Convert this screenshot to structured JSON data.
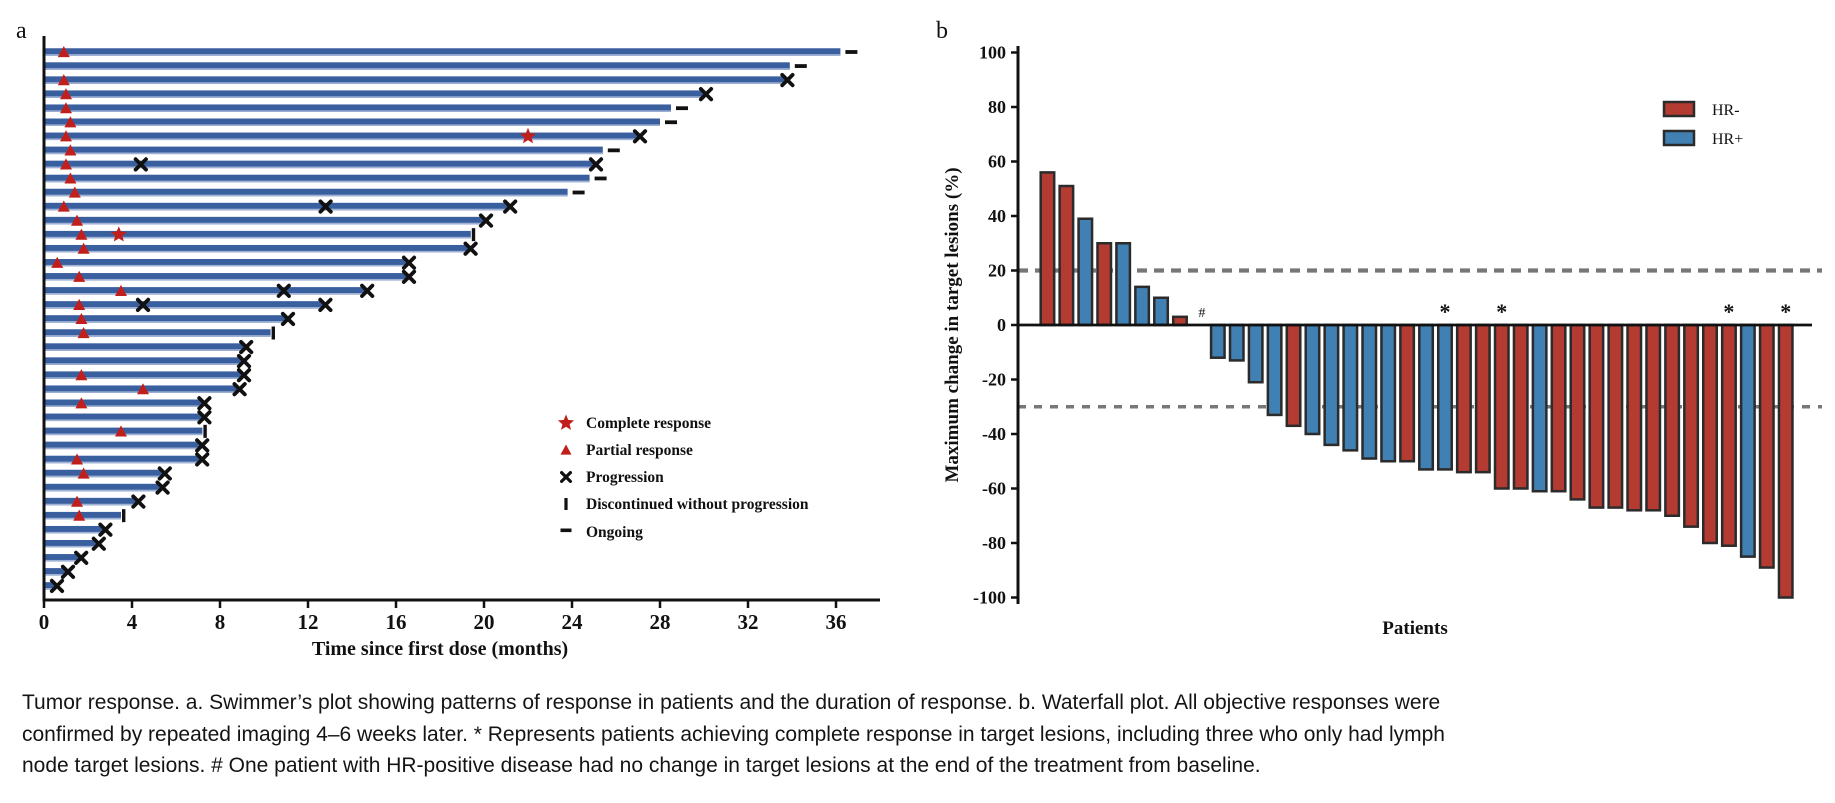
{
  "style": {
    "swimmer_bar": "#3A5F9F",
    "swimmer_bar_edge": "#9FB2D6",
    "marker_red": "#C01F1C",
    "hr_neg": "#B43B32",
    "hr_pos": "#4180B2",
    "bar_stroke": "#2B2B2B",
    "dashed_line": "#777777",
    "axis": "#111111"
  },
  "chart_data": [
    {
      "type": "swimmer",
      "panel_label": "a",
      "xlabel": "Time since first dose (months)",
      "x_ticks": [
        0,
        4,
        8,
        12,
        16,
        20,
        24,
        28,
        32,
        36
      ],
      "xlim": [
        0,
        38
      ],
      "legend": [
        {
          "marker": "star",
          "label": "Complete response"
        },
        {
          "marker": "triangle",
          "label": "Partial response"
        },
        {
          "marker": "x",
          "label": "Progression"
        },
        {
          "marker": "bar",
          "label": "Discontinued without progression"
        },
        {
          "marker": "dash",
          "label": "Ongoing"
        }
      ],
      "patients": [
        {
          "months": 36.2,
          "end": "ongoing",
          "pr": 0.9
        },
        {
          "months": 33.9,
          "end": "ongoing"
        },
        {
          "months": 33.7,
          "end": "progression",
          "pr": 0.9
        },
        {
          "months": 30.0,
          "end": "progression",
          "pr": 1.0
        },
        {
          "months": 28.5,
          "end": "ongoing",
          "pr": 1.0
        },
        {
          "months": 28.0,
          "end": "ongoing",
          "pr": 1.2
        },
        {
          "months": 27.0,
          "end": "progression",
          "pr": 1.0,
          "cr": 22.0
        },
        {
          "months": 25.4,
          "end": "ongoing",
          "pr": 1.2
        },
        {
          "months": 25.0,
          "end": "progression",
          "pr": 1.0,
          "x": [
            4.4
          ]
        },
        {
          "months": 24.8,
          "end": "ongoing",
          "pr": 1.2
        },
        {
          "months": 23.8,
          "end": "ongoing",
          "pr": 1.4
        },
        {
          "months": 21.1,
          "end": "progression",
          "pr": 0.9,
          "x": [
            12.8
          ]
        },
        {
          "months": 20.0,
          "end": "progression",
          "pr": 1.5
        },
        {
          "months": 19.4,
          "end": "discontinued",
          "pr": 1.7,
          "cr": 3.4
        },
        {
          "months": 19.3,
          "end": "progression",
          "pr": 1.8
        },
        {
          "months": 16.5,
          "end": "progression",
          "pr": 0.6
        },
        {
          "months": 16.5,
          "end": "progression",
          "pr": 1.6
        },
        {
          "months": 14.6,
          "end": "progression",
          "pr": 3.5,
          "x": [
            10.9
          ]
        },
        {
          "months": 12.7,
          "end": "progression",
          "pr": 1.6,
          "x": [
            4.5
          ]
        },
        {
          "months": 11.0,
          "end": "progression",
          "pr": 1.7
        },
        {
          "months": 10.3,
          "end": "discontinued",
          "pr": 1.8
        },
        {
          "months": 9.1,
          "end": "progression"
        },
        {
          "months": 9.0,
          "end": "progression"
        },
        {
          "months": 9.0,
          "end": "progression",
          "pr": 1.7
        },
        {
          "months": 8.8,
          "end": "progression",
          "pr": 4.5
        },
        {
          "months": 7.2,
          "end": "progression",
          "pr": 1.7
        },
        {
          "months": 7.2,
          "end": "progression"
        },
        {
          "months": 7.2,
          "end": "discontinued",
          "pr": 3.5
        },
        {
          "months": 7.1,
          "end": "progression"
        },
        {
          "months": 7.1,
          "end": "progression",
          "pr": 1.5
        },
        {
          "months": 5.4,
          "end": "progression",
          "pr": 1.8
        },
        {
          "months": 5.3,
          "end": "progression"
        },
        {
          "months": 4.2,
          "end": "progression",
          "pr": 1.5
        },
        {
          "months": 3.5,
          "end": "discontinued",
          "pr": 1.6
        },
        {
          "months": 2.7,
          "end": "progression"
        },
        {
          "months": 2.4,
          "end": "progression"
        },
        {
          "months": 1.6,
          "end": "progression"
        },
        {
          "months": 1.0,
          "end": "progression"
        },
        {
          "months": 0.5,
          "end": "progression"
        }
      ]
    },
    {
      "type": "waterfall",
      "panel_label": "b",
      "ylabel": "Maximum change in target lesions (%)",
      "xlabel": "Patients",
      "y_ticks": [
        100,
        80,
        60,
        40,
        20,
        0,
        -20,
        -40,
        -60,
        -80,
        -100
      ],
      "ylim": [
        -100,
        100
      ],
      "ref_lines": [
        20,
        -30
      ],
      "hash_symbol": "#",
      "star_symbol": "*",
      "legend": [
        {
          "label": "HR-",
          "group": "HR-"
        },
        {
          "label": "HR+",
          "group": "HR+"
        }
      ],
      "patients": [
        {
          "change": 56,
          "group": "HR-"
        },
        {
          "change": 51,
          "group": "HR-"
        },
        {
          "change": 39,
          "group": "HR+"
        },
        {
          "change": 30,
          "group": "HR-"
        },
        {
          "change": 30,
          "group": "HR+"
        },
        {
          "change": 14,
          "group": "HR+"
        },
        {
          "change": 10,
          "group": "HR+"
        },
        {
          "change": 3,
          "group": "HR-"
        },
        {
          "change": 0,
          "group": "HR+",
          "note": "hash"
        },
        {
          "change": -12,
          "group": "HR+"
        },
        {
          "change": -13,
          "group": "HR+"
        },
        {
          "change": -21,
          "group": "HR+"
        },
        {
          "change": -33,
          "group": "HR+"
        },
        {
          "change": -37,
          "group": "HR-"
        },
        {
          "change": -40,
          "group": "HR+"
        },
        {
          "change": -44,
          "group": "HR+"
        },
        {
          "change": -46,
          "group": "HR+"
        },
        {
          "change": -49,
          "group": "HR+"
        },
        {
          "change": -50,
          "group": "HR+"
        },
        {
          "change": -50,
          "group": "HR-"
        },
        {
          "change": -53,
          "group": "HR+"
        },
        {
          "change": -53,
          "group": "HR+",
          "note": "star"
        },
        {
          "change": -54,
          "group": "HR-"
        },
        {
          "change": -54,
          "group": "HR-"
        },
        {
          "change": -60,
          "group": "HR-",
          "note": "star"
        },
        {
          "change": -60,
          "group": "HR-"
        },
        {
          "change": -61,
          "group": "HR+"
        },
        {
          "change": -61,
          "group": "HR-"
        },
        {
          "change": -64,
          "group": "HR-"
        },
        {
          "change": -67,
          "group": "HR-"
        },
        {
          "change": -67,
          "group": "HR-"
        },
        {
          "change": -68,
          "group": "HR-"
        },
        {
          "change": -68,
          "group": "HR-"
        },
        {
          "change": -70,
          "group": "HR-"
        },
        {
          "change": -74,
          "group": "HR-"
        },
        {
          "change": -80,
          "group": "HR-"
        },
        {
          "change": -81,
          "group": "HR-",
          "note": "star"
        },
        {
          "change": -85,
          "group": "HR+"
        },
        {
          "change": -89,
          "group": "HR-"
        },
        {
          "change": -100,
          "group": "HR-",
          "note": "star"
        }
      ]
    }
  ],
  "caption": {
    "lines": [
      "Tumor response. a. Swimmer’s plot showing patterns of response in patients and the duration of response. b. Waterfall plot. All objective responses were",
      "confirmed by repeated imaging 4–6 weeks later. * Represents patients achieving complete response in target lesions, including three who only had lymph",
      "node target lesions. # One patient with HR-positive disease had no change in target lesions at the end of the treatment from baseline."
    ]
  }
}
